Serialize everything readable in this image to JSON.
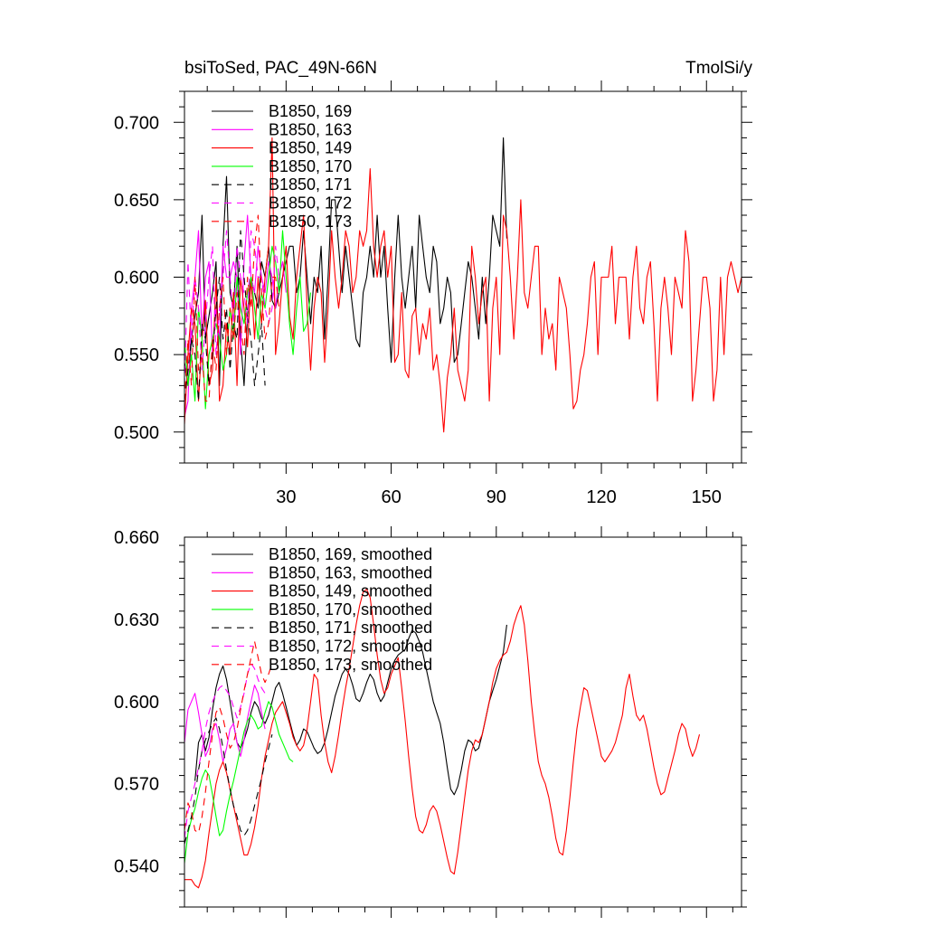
{
  "chart_data": [
    {
      "type": "line",
      "title": "bsiToSed, PAC_49N-66N",
      "units": "TmolSi/y",
      "xlabel": "",
      "ylabel": "",
      "xlim": [
        1,
        160
      ],
      "ylim": [
        0.48,
        0.72
      ],
      "xticks": [
        30,
        60,
        90,
        120,
        150
      ],
      "xtick_labels": [
        "30",
        "60",
        "90",
        "120",
        "150"
      ],
      "yticks": [
        0.5,
        0.55,
        0.6,
        0.65,
        0.7
      ],
      "ytick_labels": [
        "0.500",
        "0.550",
        "0.600",
        "0.650",
        "0.700"
      ],
      "grid": false,
      "legend_position": "top-left",
      "series": [
        {
          "name": "B1850, 169",
          "color": "#000000",
          "dash": "solid",
          "x_start": 1,
          "values": [
            0.545,
            0.53,
            0.56,
            0.575,
            0.59,
            0.64,
            0.56,
            0.575,
            0.59,
            0.61,
            0.53,
            0.62,
            0.665,
            0.59,
            0.58,
            0.62,
            0.56,
            0.53,
            0.575,
            0.6,
            0.59,
            0.58,
            0.61,
            0.6,
            0.62,
            0.585,
            0.58,
            0.59,
            0.6,
            0.61,
            0.62,
            0.62,
            0.59,
            0.6,
            0.63,
            0.6,
            0.57,
            0.6,
            0.59,
            0.62,
            0.56,
            0.6,
            0.65,
            0.65,
            0.62,
            0.59,
            0.62,
            0.6,
            0.58,
            0.56,
            0.555,
            0.59,
            0.6,
            0.62,
            0.6,
            0.64,
            0.6,
            0.62,
            0.58,
            0.545,
            0.6,
            0.64,
            0.6,
            0.58,
            0.6,
            0.62,
            0.58,
            0.64,
            0.62,
            0.6,
            0.59,
            0.62,
            0.61,
            0.57,
            0.58,
            0.6,
            0.59,
            0.545,
            0.55,
            0.57,
            0.59,
            0.61,
            0.6,
            0.58,
            0.56,
            0.6,
            0.57,
            0.6,
            0.64,
            0.63,
            0.62,
            0.69,
            0.625
          ]
        },
        {
          "name": "B1850, 163",
          "color": "#ff00ff",
          "dash": "solid",
          "x_start": 1,
          "values": [
            0.51,
            0.52,
            0.58,
            0.6,
            0.63,
            0.56,
            0.6,
            0.61,
            0.55,
            0.58,
            0.56,
            0.62,
            0.6,
            0.6,
            0.61,
            0.6,
            0.55,
            0.61,
            0.64,
            0.6,
            0.59,
            0.62,
            0.6,
            0.59,
            0.61,
            0.6,
            0.58,
            0.6,
            0.61,
            0.59
          ]
        },
        {
          "name": "B1850, 149",
          "color": "#ff0000",
          "dash": "solid",
          "x_start": 1,
          "values": [
            0.505,
            0.55,
            0.58,
            0.57,
            0.52,
            0.56,
            0.585,
            0.53,
            0.54,
            0.6,
            0.52,
            0.53,
            0.57,
            0.55,
            0.59,
            0.53,
            0.6,
            0.58,
            0.555,
            0.6,
            0.56,
            0.6,
            0.57,
            0.6,
            0.62,
            0.69,
            0.55,
            0.57,
            0.6,
            0.62,
            0.575,
            0.56,
            0.6,
            0.62,
            0.64,
            0.58,
            0.54,
            0.58,
            0.6,
            0.59,
            0.545,
            0.58,
            0.63,
            0.6,
            0.58,
            0.6,
            0.63,
            0.62,
            0.59,
            0.6,
            0.63,
            0.62,
            0.63,
            0.67,
            0.62,
            0.6,
            0.62,
            0.63,
            0.6,
            0.62,
            0.545,
            0.55,
            0.59,
            0.54,
            0.535,
            0.575,
            0.58,
            0.55,
            0.57,
            0.56,
            0.58,
            0.54,
            0.55,
            0.53,
            0.5,
            0.535,
            0.55,
            0.58,
            0.54,
            0.53,
            0.52,
            0.54,
            0.62,
            0.6,
            0.57,
            0.59,
            0.6,
            0.52,
            0.58,
            0.6,
            0.55,
            0.64,
            0.63,
            0.6,
            0.56,
            0.6,
            0.65,
            0.59,
            0.58,
            0.6,
            0.62,
            0.62,
            0.55,
            0.58,
            0.56,
            0.57,
            0.54,
            0.6,
            0.59,
            0.58,
            0.55,
            0.515,
            0.52,
            0.54,
            0.55,
            0.57,
            0.6,
            0.61,
            0.55,
            0.6,
            0.6,
            0.6,
            0.62,
            0.57,
            0.6,
            0.6,
            0.6,
            0.56,
            0.6,
            0.62,
            0.58,
            0.57,
            0.6,
            0.61,
            0.57,
            0.52,
            0.58,
            0.6,
            0.58,
            0.55,
            0.6,
            0.59,
            0.58,
            0.63,
            0.61,
            0.52,
            0.54,
            0.57,
            0.6,
            0.6,
            0.58,
            0.52,
            0.54,
            0.6,
            0.55,
            0.6,
            0.61,
            0.6,
            0.59,
            0.6
          ]
        },
        {
          "name": "B1850, 170",
          "color": "#00ff00",
          "dash": "solid",
          "x_start": 1,
          "values": [
            0.56,
            0.53,
            0.55,
            0.52,
            0.58,
            0.56,
            0.515,
            0.55,
            0.56,
            0.57,
            0.56,
            0.54,
            0.55,
            0.58,
            0.56,
            0.6,
            0.58,
            0.57,
            0.59,
            0.6,
            0.58,
            0.56,
            0.59,
            0.58,
            0.6,
            0.62,
            0.61,
            0.59,
            0.63,
            0.6,
            0.57,
            0.55,
            0.58,
            0.6,
            0.565,
            0.57,
            0.59
          ]
        },
        {
          "name": "B1850, 171",
          "color": "#000000",
          "dash": "8,6",
          "x_start": 1,
          "values": [
            0.52,
            0.54,
            0.56,
            0.55,
            0.52,
            0.57,
            0.56,
            0.53,
            0.55,
            0.58,
            0.6,
            0.56,
            0.58,
            0.54,
            0.57,
            0.56,
            0.63,
            0.6,
            0.575,
            0.56,
            0.53,
            0.55,
            0.57,
            0.53
          ]
        },
        {
          "name": "B1850, 172",
          "color": "#ff00ff",
          "dash": "8,6",
          "x_start": 1,
          "values": [
            0.53,
            0.61,
            0.56,
            0.6,
            0.58,
            0.54,
            0.57,
            0.6,
            0.62,
            0.55,
            0.58,
            0.6,
            0.63,
            0.6,
            0.57,
            0.62,
            0.6,
            0.59,
            0.57,
            0.63,
            0.62,
            0.6,
            0.6,
            0.58,
            0.57,
            0.58,
            0.62,
            0.6
          ]
        },
        {
          "name": "B1850, 173",
          "color": "#ff0000",
          "dash": "8,6",
          "x_start": 1,
          "values": [
            0.52,
            0.56,
            0.53,
            0.6,
            0.54,
            0.55,
            0.52,
            0.52,
            0.56,
            0.54,
            0.58,
            0.6,
            0.55,
            0.58,
            0.56,
            0.59,
            0.57,
            0.55,
            0.6,
            0.58,
            0.62,
            0.64,
            0.59,
            0.56,
            0.57,
            0.6,
            0.6,
            0.58
          ]
        }
      ]
    },
    {
      "type": "line",
      "title": "",
      "xlabel": "",
      "ylabel": "",
      "xlim": [
        1,
        160
      ],
      "ylim": [
        0.525,
        0.66
      ],
      "xticks": [
        30,
        60,
        90,
        120,
        150
      ],
      "xtick_labels": [],
      "yticks": [
        0.54,
        0.57,
        0.6,
        0.63,
        0.66
      ],
      "ytick_labels": [
        "0.540",
        "0.570",
        "0.600",
        "0.630",
        "0.660"
      ],
      "grid": false,
      "legend_position": "top-left",
      "series": [
        {
          "name": "B1850, 169, smoothed",
          "color": "#000000",
          "dash": "solid",
          "x_start": 4,
          "values": [
            0.571,
            0.585,
            0.588,
            0.582,
            0.587,
            0.597,
            0.605,
            0.61,
            0.613,
            0.608,
            0.6,
            0.592,
            0.585,
            0.583,
            0.586,
            0.59,
            0.596,
            0.6,
            0.598,
            0.594,
            0.592,
            0.595,
            0.6,
            0.605,
            0.607,
            0.603,
            0.598,
            0.593,
            0.588,
            0.584,
            0.586,
            0.59,
            0.589,
            0.586,
            0.583,
            0.581,
            0.582,
            0.585,
            0.59,
            0.596,
            0.602,
            0.606,
            0.61,
            0.612,
            0.61,
            0.606,
            0.601,
            0.6,
            0.603,
            0.607,
            0.61,
            0.608,
            0.603,
            0.6,
            0.602,
            0.607,
            0.612,
            0.615,
            0.617,
            0.618,
            0.619,
            0.623,
            0.626,
            0.625,
            0.622,
            0.618,
            0.612,
            0.606,
            0.6,
            0.596,
            0.592,
            0.585,
            0.576,
            0.568,
            0.566,
            0.569,
            0.575,
            0.582,
            0.586,
            0.585,
            0.582,
            0.583,
            0.588,
            0.594,
            0.6,
            0.604,
            0.608,
            0.613,
            0.618,
            0.628
          ]
        },
        {
          "name": "B1850, 163, smoothed",
          "color": "#ff00ff",
          "dash": "solid",
          "x_start": 1,
          "values": [
            0.585,
            0.597,
            0.6,
            0.603,
            0.596,
            0.588,
            0.58,
            0.583,
            0.59,
            0.592,
            0.586,
            0.578,
            0.583,
            0.59,
            0.592,
            0.585,
            0.58,
            0.586,
            0.594,
            0.6,
            0.606,
            0.603,
            0.596,
            0.59
          ]
        },
        {
          "name": "B1850, 149, smoothed",
          "color": "#ff0000",
          "dash": "solid",
          "x_start": 1,
          "values": [
            0.535,
            0.535,
            0.535,
            0.533,
            0.532,
            0.536,
            0.542,
            0.552,
            0.561,
            0.57,
            0.575,
            0.578,
            0.574,
            0.568,
            0.562,
            0.556,
            0.55,
            0.544,
            0.544,
            0.548,
            0.554,
            0.562,
            0.572,
            0.58,
            0.586,
            0.592,
            0.596,
            0.598,
            0.6,
            0.596,
            0.592,
            0.587,
            0.584,
            0.582,
            0.584,
            0.59,
            0.6,
            0.61,
            0.608,
            0.595,
            0.585,
            0.578,
            0.574,
            0.58,
            0.588,
            0.597,
            0.605,
            0.612,
            0.62,
            0.628,
            0.635,
            0.64,
            0.641,
            0.638,
            0.628,
            0.617,
            0.608,
            0.603,
            0.605,
            0.61,
            0.613,
            0.616,
            0.605,
            0.593,
            0.58,
            0.568,
            0.558,
            0.553,
            0.552,
            0.555,
            0.56,
            0.562,
            0.56,
            0.555,
            0.549,
            0.543,
            0.538,
            0.537,
            0.545,
            0.555,
            0.565,
            0.575,
            0.582,
            0.586,
            0.585,
            0.588,
            0.594,
            0.6,
            0.607,
            0.612,
            0.615,
            0.617,
            0.618,
            0.622,
            0.628,
            0.632,
            0.635,
            0.628,
            0.615,
            0.6,
            0.588,
            0.578,
            0.573,
            0.57,
            0.565,
            0.558,
            0.55,
            0.545,
            0.544,
            0.553,
            0.565,
            0.578,
            0.59,
            0.598,
            0.605,
            0.604,
            0.598,
            0.592,
            0.586,
            0.58,
            0.578,
            0.58,
            0.582,
            0.585,
            0.59,
            0.595,
            0.605,
            0.61,
            0.602,
            0.595,
            0.593,
            0.595,
            0.59,
            0.583,
            0.576,
            0.57,
            0.566,
            0.567,
            0.572,
            0.577,
            0.582,
            0.588,
            0.592,
            0.59,
            0.584,
            0.58,
            0.583,
            0.588
          ]
        },
        {
          "name": "B1850, 170, smoothed",
          "color": "#00ff00",
          "dash": "solid",
          "x_start": 1,
          "values": [
            0.541,
            0.552,
            0.557,
            0.561,
            0.567,
            0.572,
            0.575,
            0.573,
            0.566,
            0.558,
            0.551,
            0.553,
            0.56,
            0.566,
            0.571,
            0.577,
            0.583,
            0.589,
            0.593,
            0.595,
            0.593,
            0.59,
            0.591,
            0.596,
            0.6,
            0.598,
            0.593,
            0.588,
            0.585,
            0.582,
            0.579,
            0.578
          ]
        },
        {
          "name": "B1850, 171, smoothed",
          "color": "#000000",
          "dash": "8,6",
          "x_start": 1,
          "values": [
            0.548,
            0.553,
            0.558,
            0.565,
            0.575,
            0.582,
            0.586,
            0.589,
            0.592,
            0.594,
            0.59,
            0.583,
            0.575,
            0.568,
            0.562,
            0.558,
            0.553,
            0.551,
            0.553,
            0.557,
            0.562,
            0.567,
            0.572,
            0.578,
            0.583,
            0.588
          ]
        },
        {
          "name": "B1850, 172, smoothed",
          "color": "#ff00ff",
          "dash": "8,6",
          "x_start": 1,
          "values": [
            0.55,
            0.56,
            0.565,
            0.57,
            0.576,
            0.582,
            0.59,
            0.596,
            0.6,
            0.603,
            0.605,
            0.606,
            0.604,
            0.602,
            0.598,
            0.594,
            0.598,
            0.603,
            0.61,
            0.614,
            0.612,
            0.608,
            0.605,
            0.603
          ]
        },
        {
          "name": "B1850, 173, smoothed",
          "color": "#ff0000",
          "dash": "8,6",
          "x_start": 1,
          "values": [
            0.553,
            0.563,
            0.56,
            0.553,
            0.552,
            0.558,
            0.567,
            0.578,
            0.588,
            0.596,
            0.598,
            0.594,
            0.588,
            0.583,
            0.585,
            0.59,
            0.597,
            0.604,
            0.61,
            0.616,
            0.622,
            0.616,
            0.61,
            0.607,
            0.61,
            0.614
          ]
        }
      ]
    }
  ]
}
